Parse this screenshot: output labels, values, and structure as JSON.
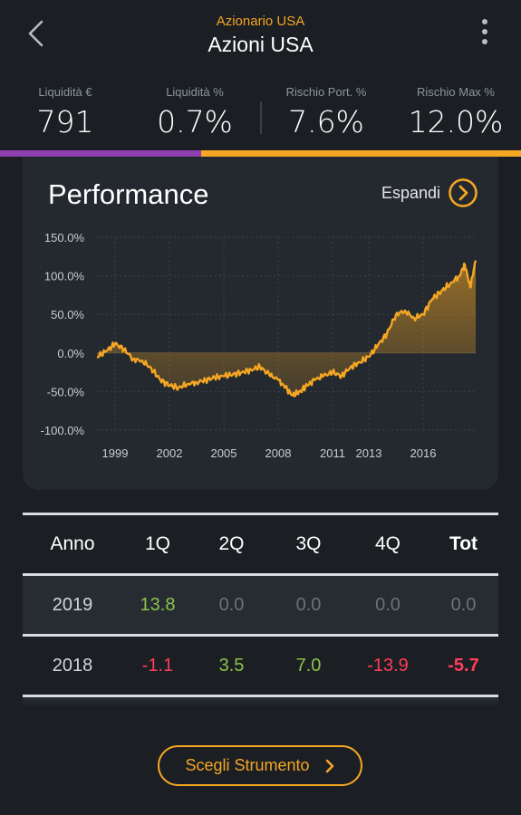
{
  "header": {
    "subtitle": "Azionario USA",
    "title": "Azioni USA"
  },
  "stats": [
    {
      "label": "Liquidità €",
      "value": "791"
    },
    {
      "label": "Liquidità %",
      "value": "0.7%"
    },
    {
      "label": "Rischio Port. %",
      "value": "7.6%"
    },
    {
      "label": "Rischio Max %",
      "value": "12.0%"
    }
  ],
  "allocation_bar": {
    "liquidity_fraction": 0.386,
    "colors": {
      "liquidity": "#8e3fb0",
      "invested": "#f5a623"
    }
  },
  "performance": {
    "title": "Performance",
    "expand_label": "Espandi",
    "chart_data": {
      "type": "area",
      "title": "Performance",
      "xlabel": "",
      "ylabel": "",
      "ylim": [
        -100,
        150
      ],
      "y_ticks": [
        "150.0%",
        "100.0%",
        "50.0%",
        "0.0%",
        "-50.0%",
        "-100.0%"
      ],
      "x_ticks": [
        "1999",
        "2002",
        "2005",
        "2008",
        "2011",
        "2013",
        "2016"
      ],
      "grid": true,
      "color": "#f5a623",
      "series": [
        {
          "x": [
            1998.0,
            1998.5,
            1999.0,
            1999.5,
            2000.0,
            2000.5,
            2001.0,
            2001.5,
            2002.0,
            2002.5,
            2003.0,
            2003.5,
            2004.0,
            2004.5,
            2005.0,
            2005.5,
            2006.0,
            2006.5,
            2007.0,
            2007.5,
            2008.0,
            2008.4,
            2008.8,
            2009.2,
            2009.6,
            2010.0,
            2010.5,
            2011.0,
            2011.5,
            2012.0,
            2012.5,
            2013.0,
            2013.5,
            2014.0,
            2014.5,
            2015.0,
            2015.5,
            2016.0,
            2016.5,
            2017.0,
            2017.5,
            2018.0,
            2018.3,
            2018.6,
            2018.9
          ],
          "y": [
            -5,
            2,
            12,
            5,
            -8,
            -10,
            -20,
            -35,
            -42,
            -45,
            -40,
            -38,
            -35,
            -32,
            -30,
            -28,
            -25,
            -22,
            -18,
            -28,
            -35,
            -45,
            -55,
            -50,
            -42,
            -35,
            -30,
            -25,
            -30,
            -18,
            -12,
            -5,
            10,
            25,
            50,
            55,
            45,
            50,
            70,
            80,
            90,
            100,
            115,
            85,
            120
          ]
        }
      ]
    }
  },
  "table": {
    "headers": [
      "Anno",
      "1Q",
      "2Q",
      "3Q",
      "4Q",
      "Tot"
    ],
    "rows": [
      {
        "year": "2019",
        "q1": "13.8",
        "q2": "0.0",
        "q3": "0.0",
        "q4": "0.0",
        "tot": "0.0"
      },
      {
        "year": "2018",
        "q1": "-1.1",
        "q2": "3.5",
        "q3": "7.0",
        "q4": "-13.9",
        "tot": "-5.7"
      }
    ]
  },
  "footer": {
    "choose_label": "Scegli Strumento"
  }
}
